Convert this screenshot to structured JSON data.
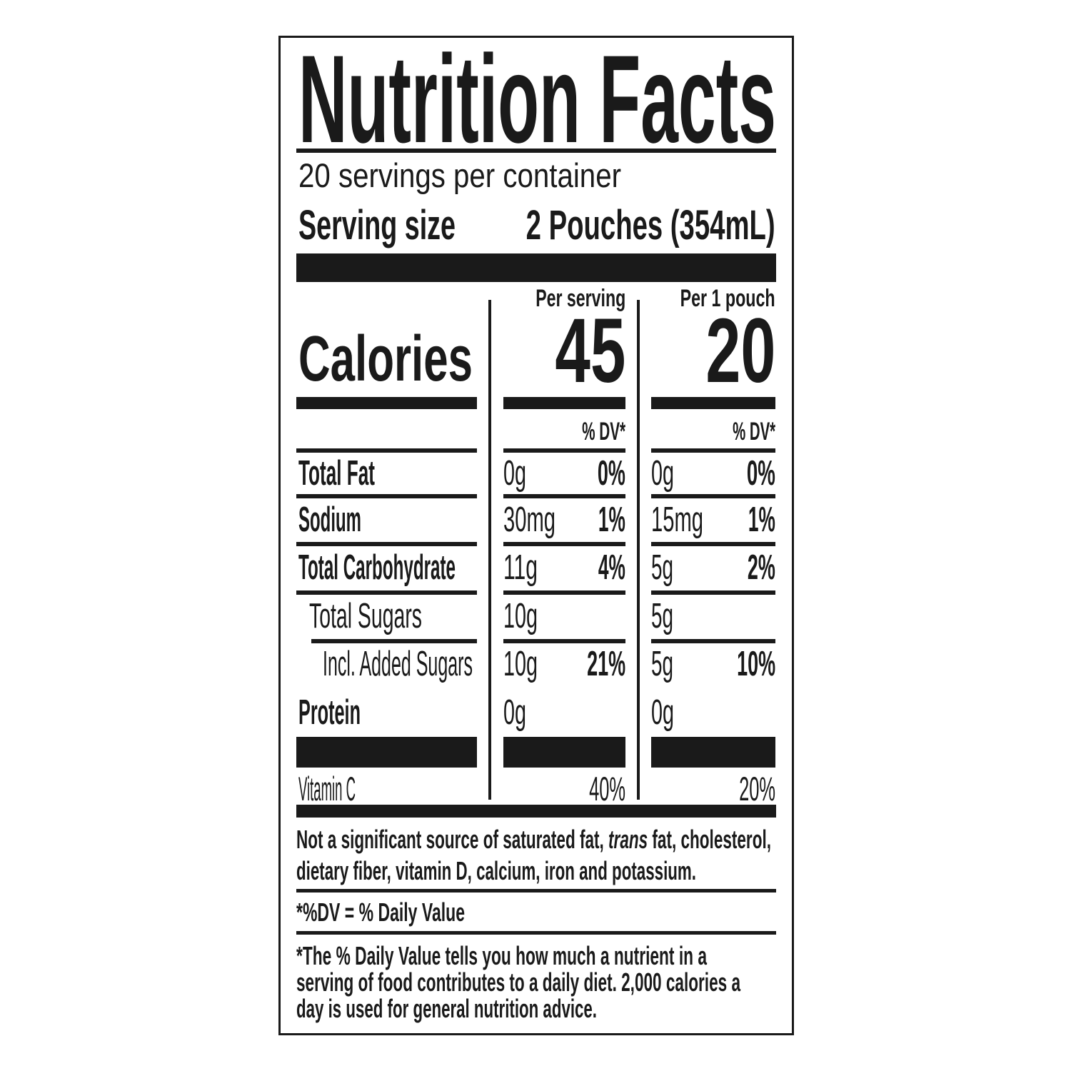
{
  "label": {
    "title": "Nutrition Facts",
    "servings_per_container": "20 servings per container",
    "serving_size_label": "Serving size",
    "serving_size_value": "2 Pouches (354mL)",
    "columns": [
      {
        "header": "Per serving",
        "calories": "45",
        "dv_header": "% DV*"
      },
      {
        "header": "Per 1 pouch",
        "calories": "20",
        "dv_header": "% DV*"
      }
    ],
    "calories_label": "Calories",
    "nutrients": [
      {
        "name": "Total Fat",
        "c1_amount": "0g",
        "c1_dv": "0%",
        "c2_amount": "0g",
        "c2_dv": "0%"
      },
      {
        "name": "Sodium",
        "c1_amount": "30mg",
        "c1_dv": "1%",
        "c2_amount": "15mg",
        "c2_dv": "1%"
      },
      {
        "name": "Total Carbohydrate",
        "c1_amount": "11g",
        "c1_dv": "4%",
        "c2_amount": "5g",
        "c2_dv": "2%"
      },
      {
        "name": "Total Sugars",
        "c1_amount": "10g",
        "c2_amount": "5g"
      },
      {
        "name": "Incl. Added Sugars",
        "c1_amount": "10g",
        "c1_dv": "21%",
        "c2_amount": "5g",
        "c2_dv": "10%"
      },
      {
        "name": "Protein",
        "c1_amount": "0g",
        "c2_amount": "0g"
      }
    ],
    "vitamins": [
      {
        "name": "Vitamin C",
        "c1_dv": "40%",
        "c2_dv": "20%"
      }
    ],
    "footnote": {
      "not_significant_1a": "Not a significant source of saturated fat, ",
      "not_significant_1b": "trans",
      "not_significant_1c": " fat, cholesterol,",
      "not_significant_2": "dietary fiber, vitamin D, calcium, iron and potassium.",
      "dv_definition": "*%DV = % Daily Value",
      "dv_explanation_1": "*The % Daily Value tells you how much a nutrient in a",
      "dv_explanation_2": "serving of food contributes to a daily diet. 2,000 calories a",
      "dv_explanation_3": "day is used for general nutrition advice."
    }
  }
}
